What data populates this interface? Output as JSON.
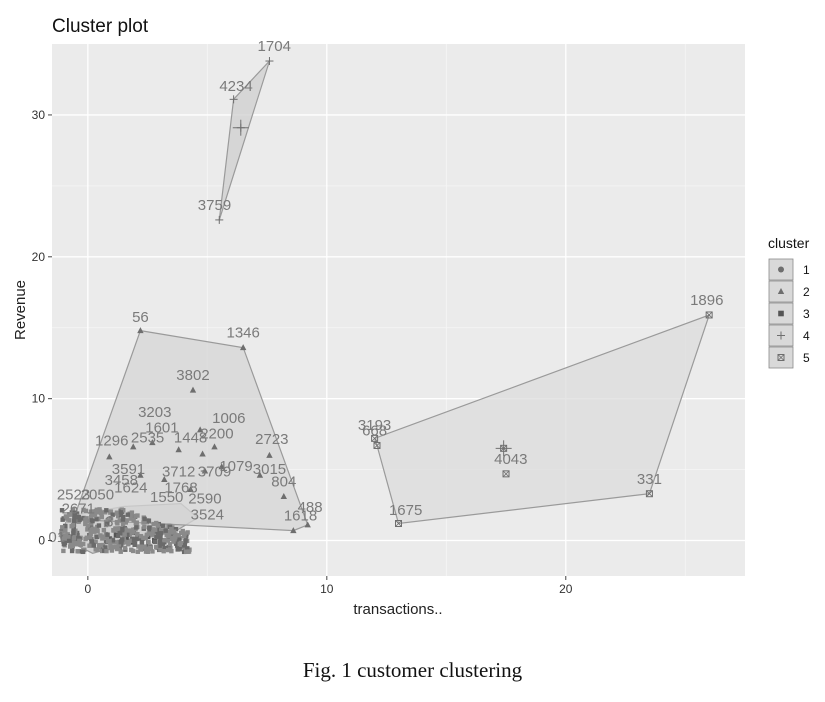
{
  "chart_data": {
    "type": "scatter",
    "title": "Cluster plot",
    "xlabel": "transactions..",
    "ylabel": "Revenue",
    "xlim": [
      -1.5,
      27.5
    ],
    "ylim": [
      -2.5,
      35
    ],
    "x_ticks": [
      0,
      10,
      20
    ],
    "y_ticks": [
      0,
      10,
      20,
      30
    ],
    "grid": true,
    "legend": {
      "title": "cluster",
      "position": "right",
      "entries": [
        "1",
        "2",
        "3",
        "4",
        "5"
      ]
    },
    "clusters": [
      {
        "name": "1",
        "hull": [
          [
            -1.2,
            0.3
          ],
          [
            0.2,
            -0.9
          ],
          [
            3.8,
            0.8
          ],
          [
            4.6,
            1.6
          ],
          [
            3.9,
            2.6
          ],
          [
            1.5,
            2.4
          ],
          [
            -0.8,
            1.7
          ]
        ],
        "labels": [
          {
            "text": "3",
            "x": 0.9,
            "y": 1.0
          }
        ]
      },
      {
        "name": "2",
        "hull": [
          [
            2.2,
            14.8
          ],
          [
            6.5,
            13.6
          ],
          [
            9.2,
            1.1
          ],
          [
            8.6,
            0.7
          ],
          [
            -0.6,
            1.5
          ]
        ],
        "points": [
          {
            "x": 2.2,
            "y": 14.8
          },
          {
            "x": 6.5,
            "y": 13.6
          },
          {
            "x": 4.4,
            "y": 10.6
          },
          {
            "x": 4.7,
            "y": 7.8
          },
          {
            "x": 5.3,
            "y": 6.6
          },
          {
            "x": 4.8,
            "y": 6.1
          },
          {
            "x": 1.9,
            "y": 6.6
          },
          {
            "x": 2.7,
            "y": 6.9
          },
          {
            "x": 3.8,
            "y": 6.4
          },
          {
            "x": 0.9,
            "y": 5.9
          },
          {
            "x": 7.6,
            "y": 6.0
          },
          {
            "x": 4.9,
            "y": 4.9
          },
          {
            "x": 5.6,
            "y": 5.2
          },
          {
            "x": 7.2,
            "y": 4.6
          },
          {
            "x": 8.2,
            "y": 3.1
          },
          {
            "x": 8.6,
            "y": 0.7
          },
          {
            "x": 9.2,
            "y": 1.1
          },
          {
            "x": 3.2,
            "y": 4.3
          },
          {
            "x": 2.2,
            "y": 4.6
          },
          {
            "x": 4.3,
            "y": 3.6
          }
        ],
        "labels": [
          {
            "text": "56",
            "x": 2.2,
            "y": 15.4
          },
          {
            "text": "1346",
            "x": 6.5,
            "y": 14.3
          },
          {
            "text": "3802",
            "x": 4.4,
            "y": 11.3
          },
          {
            "text": "3203",
            "x": 2.8,
            "y": 8.7
          },
          {
            "text": "1006",
            "x": 5.9,
            "y": 8.3
          },
          {
            "text": "1601",
            "x": 3.1,
            "y": 7.6
          },
          {
            "text": "2535",
            "x": 2.5,
            "y": 6.9
          },
          {
            "text": "1448",
            "x": 4.3,
            "y": 6.9
          },
          {
            "text": "2200",
            "x": 5.4,
            "y": 7.2
          },
          {
            "text": "1296",
            "x": 1.0,
            "y": 6.7
          },
          {
            "text": "2723",
            "x": 7.7,
            "y": 6.8
          },
          {
            "text": "1079",
            "x": 6.2,
            "y": 4.9
          },
          {
            "text": "3015",
            "x": 7.6,
            "y": 4.7
          },
          {
            "text": "804",
            "x": 8.2,
            "y": 3.8
          },
          {
            "text": "1618",
            "x": 8.9,
            "y": 1.4
          },
          {
            "text": "488",
            "x": 9.3,
            "y": 2.0
          },
          {
            "text": "3712",
            "x": 3.8,
            "y": 4.5
          },
          {
            "text": "3709",
            "x": 5.3,
            "y": 4.5
          },
          {
            "text": "1768",
            "x": 3.9,
            "y": 3.4
          },
          {
            "text": "3591",
            "x": 1.7,
            "y": 4.7
          },
          {
            "text": "3458",
            "x": 1.4,
            "y": 3.9
          },
          {
            "text": "1624",
            "x": 1.8,
            "y": 3.4
          },
          {
            "text": "2523",
            "x": -0.6,
            "y": 2.9
          },
          {
            "text": "2050",
            "x": 0.4,
            "y": 2.9
          },
          {
            "text": "1550",
            "x": 3.3,
            "y": 2.7
          },
          {
            "text": "2590",
            "x": 4.9,
            "y": 2.6
          },
          {
            "text": "2671",
            "x": -0.4,
            "y": 1.9
          },
          {
            "text": "3524",
            "x": 5.0,
            "y": 1.5
          },
          {
            "text": "01",
            "x": -1.3,
            "y": -0.1
          }
        ]
      },
      {
        "name": "3",
        "points": [
          {
            "x": 0.9,
            "y": 0.1
          },
          {
            "x": 1.6,
            "y": 0.2
          },
          {
            "x": 2.5,
            "y": 0.3
          },
          {
            "x": 3.5,
            "y": 0.5
          },
          {
            "x": 1.2,
            "y": 0.4
          },
          {
            "x": 2.1,
            "y": 0.2
          },
          {
            "x": 3.0,
            "y": 0.6
          },
          {
            "x": 3.8,
            "y": 0.1
          },
          {
            "x": 0.5,
            "y": -0.4
          },
          {
            "x": 1.8,
            "y": -0.1
          },
          {
            "x": 2.8,
            "y": 0.0
          },
          {
            "x": 3.4,
            "y": 0.2
          }
        ],
        "labels": []
      },
      {
        "name": "4",
        "hull": [
          [
            7.6,
            33.8
          ],
          [
            5.5,
            22.6
          ],
          [
            6.1,
            31.1
          ]
        ],
        "points": [
          {
            "x": 7.6,
            "y": 33.8
          },
          {
            "x": 6.1,
            "y": 31.1
          },
          {
            "x": 5.5,
            "y": 22.6
          },
          {
            "x": 6.4,
            "y": 29.1
          }
        ],
        "labels": [
          {
            "text": "1704",
            "x": 7.8,
            "y": 34.5
          },
          {
            "text": "4234",
            "x": 6.2,
            "y": 31.7
          },
          {
            "text": "3759",
            "x": 5.3,
            "y": 23.3
          }
        ]
      },
      {
        "name": "5",
        "hull": [
          [
            12.0,
            7.2
          ],
          [
            26.0,
            15.9
          ],
          [
            23.5,
            3.3
          ],
          [
            13.0,
            1.2
          ],
          [
            12.1,
            6.7
          ]
        ],
        "points": [
          {
            "x": 12.0,
            "y": 7.2
          },
          {
            "x": 12.1,
            "y": 6.7
          },
          {
            "x": 17.5,
            "y": 4.7
          },
          {
            "x": 26.0,
            "y": 15.9
          },
          {
            "x": 23.5,
            "y": 3.3
          },
          {
            "x": 13.0,
            "y": 1.2
          },
          {
            "x": 17.4,
            "y": 6.5
          }
        ],
        "labels": [
          {
            "text": "1896",
            "x": 25.9,
            "y": 16.6
          },
          {
            "text": "3193",
            "x": 12.0,
            "y": 7.8
          },
          {
            "text": "668",
            "x": 12.0,
            "y": 7.4
          },
          {
            "text": "4043",
            "x": 17.7,
            "y": 5.4
          },
          {
            "text": "331",
            "x": 23.5,
            "y": 4.0
          },
          {
            "text": "1675",
            "x": 13.3,
            "y": 1.8
          }
        ]
      }
    ]
  },
  "caption": "Fig. 1 customer clustering"
}
